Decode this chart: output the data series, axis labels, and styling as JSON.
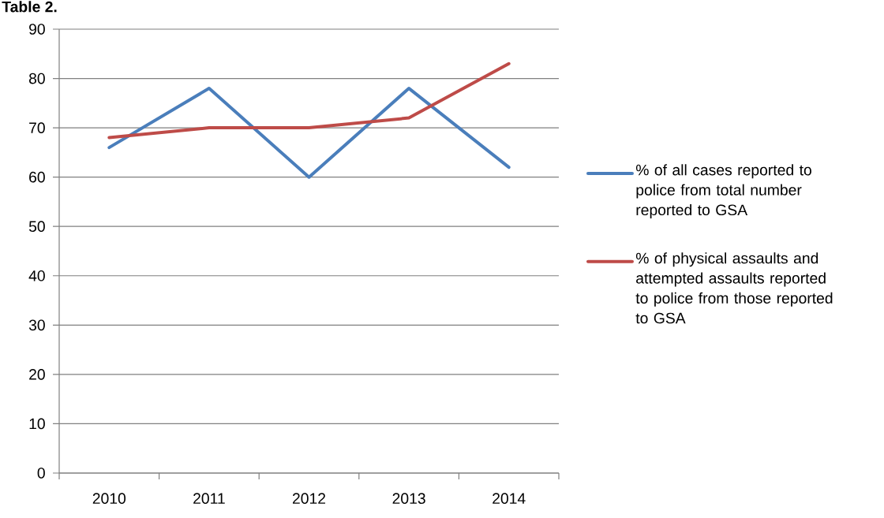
{
  "chart_data": {
    "type": "line",
    "title": "Table 2.",
    "categories": [
      "2010",
      "2011",
      "2012",
      "2013",
      "2014"
    ],
    "series": [
      {
        "name": "% of all cases reported to police from total number reported to GSA",
        "color": "#4a7ebb",
        "values": [
          66,
          78,
          60,
          78,
          62
        ]
      },
      {
        "name": "% of physical assaults and attempted assaults reported to police from those reported to GSA",
        "color": "#be4b48",
        "values": [
          68,
          70,
          70,
          72,
          83
        ]
      }
    ],
    "ylim": [
      0,
      90
    ],
    "yticks": [
      0,
      10,
      20,
      30,
      40,
      50,
      60,
      70,
      80,
      90
    ],
    "grid": "y",
    "legend": "right",
    "marker": "none",
    "line_style": "solid"
  }
}
